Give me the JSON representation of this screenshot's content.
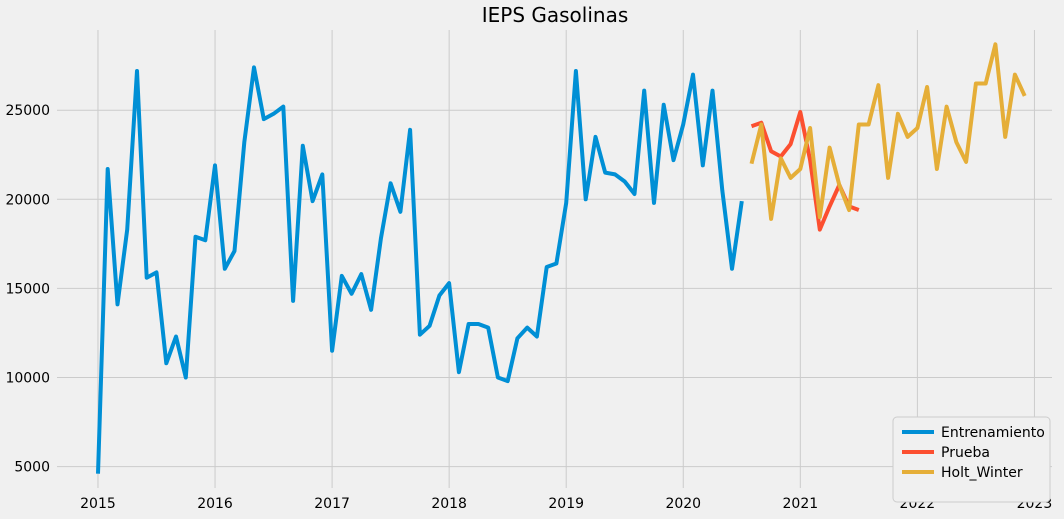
{
  "chart_data": {
    "type": "line",
    "title": "IEPS Gasolinas",
    "xlabel": "",
    "ylabel": "",
    "x_ticks": [
      "2015",
      "2016",
      "2017",
      "2018",
      "2019",
      "2020",
      "2021",
      "2022",
      "2023"
    ],
    "y_ticks": [
      "5000",
      "10000",
      "15000",
      "20000",
      "25000"
    ],
    "xlim": [
      2014.65,
      2023.15
    ],
    "ylim": [
      3800,
      29500
    ],
    "grid": true,
    "legend_position": "bottom-right",
    "series": [
      {
        "name": "Entrenamiento",
        "color": "#008fd5",
        "x_start": 2015.0,
        "step": 0.08333,
        "values": [
          4600,
          21700,
          14100,
          18300,
          27200,
          15600,
          15900,
          10800,
          12300,
          10000,
          17900,
          17700,
          21900,
          16100,
          17100,
          23200,
          27400,
          24500,
          24800,
          25200,
          14300,
          23000,
          19900,
          21400,
          11500,
          15700,
          14700,
          15800,
          13800,
          17800,
          20900,
          19300,
          23900,
          12400,
          12900,
          14600,
          15300,
          10300,
          13000,
          13000,
          12800,
          10000,
          9800,
          12200,
          12800,
          12300,
          16200,
          16400,
          19800,
          27200,
          20000,
          23500,
          21500,
          21400,
          21000,
          20300,
          26100,
          19800,
          25300,
          22200,
          24200,
          27000,
          21900,
          26100,
          20500,
          16100,
          19900
        ]
      },
      {
        "name": "Prueba",
        "color": "#fc4f30",
        "x_start": 2020.5833,
        "step": 0.08333,
        "values": [
          24100,
          24300,
          22700,
          22400,
          23100,
          24900,
          22200,
          18300,
          19600,
          20800,
          19600,
          19400
        ]
      },
      {
        "name": "Holt_Winter",
        "color": "#e5ae38",
        "x_start": 2020.5833,
        "step": 0.08333,
        "values": [
          22000,
          24200,
          18900,
          22300,
          21200,
          21700,
          24000,
          19000,
          22900,
          20800,
          19400,
          24200,
          24200,
          26400,
          21200,
          24800,
          23500,
          24000,
          26300,
          21700,
          25200,
          23200,
          22100,
          26500,
          26500,
          28700,
          23500,
          27000,
          25800
        ]
      }
    ]
  }
}
